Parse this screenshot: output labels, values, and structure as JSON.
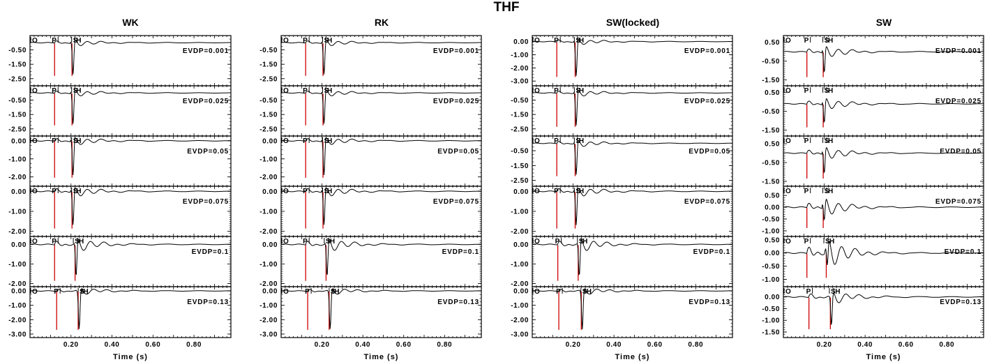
{
  "figure_title": "THF",
  "colors": {
    "trace": "#000000",
    "marker": "#cc0000",
    "axis": "#000000"
  },
  "chart_data": {
    "type": "line",
    "title": "THF",
    "xlabel": "Time (s)",
    "xlim": [
      0.0,
      0.98
    ],
    "xticks": [
      0.2,
      0.4,
      0.6,
      0.8
    ],
    "xtick_labels": [
      "0.20",
      "0.40",
      "0.60",
      "0.80"
    ],
    "panels": [
      {
        "name": "WK",
        "rows": [
          {
            "label": "EVDP=0.001",
            "ylim": [
              -2.85,
              0.35
            ],
            "yticks": [
              -0.5,
              -1.5,
              -2.5
            ],
            "ytick_labels": [
              "-0.50",
              "-1.50",
              "-2.50"
            ],
            "p_time": 0.12,
            "s_time": 0.21,
            "p_pick": 0.12,
            "s_pick": 0.21,
            "sh_pick": 0.222,
            "baseline": 0.0,
            "trough": -2.5,
            "ringing": 0.9
          },
          {
            "label": "EVDP=0.025",
            "ylim": [
              -2.85,
              0.35
            ],
            "yticks": [
              -0.5,
              -1.5,
              -2.5
            ],
            "ytick_labels": [
              "-0.50",
              "-1.50",
              "-2.50"
            ],
            "p_time": 0.12,
            "s_time": 0.21,
            "p_pick": 0.12,
            "s_pick": 0.21,
            "sh_pick": 0.222,
            "baseline": 0.0,
            "trough": -2.45,
            "ringing": 0.9
          },
          {
            "label": "EVDP=0.05",
            "ylim": [
              -2.4,
              0.15
            ],
            "yticks": [
              0.0,
              -1.0,
              -2.0
            ],
            "ytick_labels": [
              "0.00",
              "-1.00",
              "-2.00"
            ],
            "p_time": 0.12,
            "s_time": 0.21,
            "p_pick": 0.12,
            "s_pick": 0.21,
            "sh_pick": 0.222,
            "baseline": 0.0,
            "trough": -2.2,
            "ringing": 0.9
          },
          {
            "label": "EVDP=0.075",
            "ylim": [
              -2.15,
              0.15
            ],
            "yticks": [
              0.0,
              -1.0,
              -2.0
            ],
            "ytick_labels": [
              "0.00",
              "-1.00",
              "-2.00"
            ],
            "p_time": 0.12,
            "s_time": 0.21,
            "p_pick": 0.12,
            "s_pick": 0.21,
            "sh_pick": 0.222,
            "baseline": 0.0,
            "trough": -2.0,
            "ringing": 1.0
          },
          {
            "label": "EVDP=0.1",
            "ylim": [
              -2.05,
              0.3
            ],
            "yticks": [
              0.0,
              -1.0,
              -2.0
            ],
            "ytick_labels": [
              "0.00",
              "-1.00",
              "-2.00"
            ],
            "p_time": 0.12,
            "s_time": 0.225,
            "p_pick": 0.12,
            "s_pick": 0.218,
            "sh_pick": 0.235,
            "baseline": 0.0,
            "trough": -2.0,
            "ringing": 1.3
          },
          {
            "label": "EVDP=0.13",
            "ylim": [
              -3.1,
              0.15
            ],
            "yticks": [
              0.0,
              -1.0,
              -2.0,
              -3.0
            ],
            "ytick_labels": [
              "0.00",
              "-1.00",
              "-2.00",
              "-3.00"
            ],
            "p_time": 0.13,
            "s_time": 0.24,
            "p_pick": 0.13,
            "s_pick": 0.242,
            "sh_pick": 0.257,
            "baseline": 0.0,
            "trough": -2.9,
            "ringing": 0.9
          }
        ]
      },
      {
        "name": "RK",
        "rows": [
          {
            "label": "EVDP=0.001",
            "ylim": [
              -2.85,
              0.35
            ],
            "yticks": [
              -0.5,
              -1.5,
              -2.5
            ],
            "ytick_labels": [
              "-0.50",
              "-1.50",
              "-2.50"
            ],
            "p_time": 0.12,
            "s_time": 0.21,
            "p_pick": 0.12,
            "s_pick": 0.21,
            "sh_pick": 0.222,
            "baseline": 0.0,
            "trough": -2.5,
            "ringing": 0.9
          },
          {
            "label": "EVDP=0.025",
            "ylim": [
              -2.85,
              0.35
            ],
            "yticks": [
              -0.5,
              -1.5,
              -2.5
            ],
            "ytick_labels": [
              "-0.50",
              "-1.50",
              "-2.50"
            ],
            "p_time": 0.12,
            "s_time": 0.21,
            "p_pick": 0.12,
            "s_pick": 0.21,
            "sh_pick": 0.222,
            "baseline": 0.0,
            "trough": -2.45,
            "ringing": 0.9
          },
          {
            "label": "EVDP=0.05",
            "ylim": [
              -2.4,
              0.15
            ],
            "yticks": [
              0.0,
              -1.0,
              -2.0
            ],
            "ytick_labels": [
              "0.00",
              "-1.00",
              "-2.00"
            ],
            "p_time": 0.12,
            "s_time": 0.21,
            "p_pick": 0.12,
            "s_pick": 0.21,
            "sh_pick": 0.222,
            "baseline": 0.0,
            "trough": -2.2,
            "ringing": 0.9
          },
          {
            "label": "EVDP=0.075",
            "ylim": [
              -2.15,
              0.15
            ],
            "yticks": [
              0.0,
              -1.0,
              -2.0
            ],
            "ytick_labels": [
              "0.00",
              "-1.00",
              "-2.00"
            ],
            "p_time": 0.12,
            "s_time": 0.21,
            "p_pick": 0.12,
            "s_pick": 0.21,
            "sh_pick": 0.222,
            "baseline": 0.0,
            "trough": -2.0,
            "ringing": 1.0
          },
          {
            "label": "EVDP=0.1",
            "ylim": [
              -2.05,
              0.3
            ],
            "yticks": [
              0.0,
              -1.0,
              -2.0
            ],
            "ytick_labels": [
              "0.00",
              "-1.00",
              "-2.00"
            ],
            "p_time": 0.12,
            "s_time": 0.225,
            "p_pick": 0.12,
            "s_pick": 0.218,
            "sh_pick": 0.235,
            "baseline": 0.0,
            "trough": -2.0,
            "ringing": 1.3
          },
          {
            "label": "EVDP=0.13",
            "ylim": [
              -3.1,
              0.15
            ],
            "yticks": [
              0.0,
              -1.0,
              -2.0,
              -3.0
            ],
            "ytick_labels": [
              "0.00",
              "-1.00",
              "-2.00",
              "-3.00"
            ],
            "p_time": 0.13,
            "s_time": 0.24,
            "p_pick": 0.13,
            "s_pick": 0.242,
            "sh_pick": 0.257,
            "baseline": 0.0,
            "trough": -2.9,
            "ringing": 0.9
          }
        ]
      },
      {
        "name": "SW(locked)",
        "rows": [
          {
            "label": "EVDP=0.001",
            "ylim": [
              -3.2,
              0.3
            ],
            "yticks": [
              0.0,
              -1.0,
              -2.0,
              -3.0
            ],
            "ytick_labels": [
              "0.00",
              "-1.00",
              "-2.00",
              "-3.00"
            ],
            "p_time": 0.12,
            "s_time": 0.215,
            "p_pick": 0.12,
            "s_pick": 0.213,
            "sh_pick": 0.225,
            "baseline": 0.0,
            "trough": -2.9,
            "ringing": 0.9
          },
          {
            "label": "EVDP=0.025",
            "ylim": [
              -2.85,
              0.35
            ],
            "yticks": [
              -0.5,
              -1.5,
              -2.5
            ],
            "ytick_labels": [
              "-0.50",
              "-1.50",
              "-2.50"
            ],
            "p_time": 0.12,
            "s_time": 0.215,
            "p_pick": 0.12,
            "s_pick": 0.213,
            "sh_pick": 0.225,
            "baseline": 0.0,
            "trough": -2.55,
            "ringing": 0.9
          },
          {
            "label": "EVDP=0.05",
            "ylim": [
              -2.75,
              0.35
            ],
            "yticks": [
              -0.5,
              -1.5,
              -2.5
            ],
            "ytick_labels": [
              "-0.50",
              "-1.50",
              "-2.50"
            ],
            "p_time": 0.12,
            "s_time": 0.215,
            "p_pick": 0.12,
            "s_pick": 0.213,
            "sh_pick": 0.225,
            "baseline": 0.0,
            "trough": -2.4,
            "ringing": 0.9
          },
          {
            "label": "EVDP=0.075",
            "ylim": [
              -2.15,
              0.15
            ],
            "yticks": [
              0.0,
              -1.0,
              -2.0
            ],
            "ytick_labels": [
              "0.00",
              "-1.00",
              "-2.00"
            ],
            "p_time": 0.12,
            "s_time": 0.215,
            "p_pick": 0.12,
            "s_pick": 0.213,
            "sh_pick": 0.225,
            "baseline": 0.0,
            "trough": -2.0,
            "ringing": 1.0
          },
          {
            "label": "EVDP=0.1",
            "ylim": [
              -2.05,
              0.3
            ],
            "yticks": [
              0.0,
              -1.0,
              -2.0
            ],
            "ytick_labels": [
              "0.00",
              "-1.00",
              "-2.00"
            ],
            "p_time": 0.125,
            "s_time": 0.23,
            "p_pick": 0.125,
            "s_pick": 0.228,
            "sh_pick": 0.243,
            "baseline": 0.0,
            "trough": -2.0,
            "ringing": 1.3
          },
          {
            "label": "EVDP=0.13",
            "ylim": [
              -3.1,
              0.15
            ],
            "yticks": [
              0.0,
              -1.0,
              -2.0,
              -3.0
            ],
            "ytick_labels": [
              "0.00",
              "-1.00",
              "-2.00",
              "-3.00"
            ],
            "p_time": 0.13,
            "s_time": 0.245,
            "p_pick": 0.13,
            "s_pick": 0.245,
            "sh_pick": 0.262,
            "baseline": 0.0,
            "trough": -2.9,
            "ringing": 0.9
          }
        ]
      },
      {
        "name": "SW",
        "rows": [
          {
            "label": "EVDP=0.001",
            "ylim": [
              -1.7,
              0.75
            ],
            "yticks": [
              0.5,
              -0.5,
              -1.5
            ],
            "ytick_labels": [
              "0.50",
              "-0.50",
              "-1.50"
            ],
            "p_time": 0.115,
            "s_time": 0.2,
            "p_pick": 0.115,
            "s_pick": 0.2,
            "sh_pick": 0.215,
            "baseline": 0.0,
            "trough": -1.5,
            "ringing": 1.2
          },
          {
            "label": "EVDP=0.025",
            "ylim": [
              -1.7,
              0.75
            ],
            "yticks": [
              0.5,
              -0.5,
              -1.5
            ],
            "ytick_labels": [
              "0.50",
              "-0.50",
              "-1.50"
            ],
            "p_time": 0.115,
            "s_time": 0.2,
            "p_pick": 0.115,
            "s_pick": 0.2,
            "sh_pick": 0.215,
            "baseline": -0.1,
            "trough": -1.5,
            "ringing": 1.2
          },
          {
            "label": "EVDP=0.05",
            "ylim": [
              -1.65,
              0.8
            ],
            "yticks": [
              0.5,
              -0.5,
              -1.5
            ],
            "ytick_labels": [
              "0.50",
              "-0.50",
              "-1.50"
            ],
            "p_time": 0.115,
            "s_time": 0.2,
            "p_pick": 0.115,
            "s_pick": 0.2,
            "sh_pick": 0.215,
            "baseline": 0.0,
            "trough": -1.5,
            "ringing": 1.3
          },
          {
            "label": "EVDP=0.075",
            "ylim": [
              -1.15,
              0.8
            ],
            "yticks": [
              0.5,
              0.0,
              -0.5,
              -1.0
            ],
            "ytick_labels": [
              "0.50",
              "0.00",
              "-0.50",
              "-1.00"
            ],
            "p_time": 0.115,
            "s_time": 0.2,
            "p_pick": 0.115,
            "s_pick": 0.2,
            "sh_pick": 0.215,
            "baseline": 0.0,
            "trough": -1.0,
            "ringing": 1.4
          },
          {
            "label": "EVDP=0.1",
            "ylim": [
              -1.2,
              0.55
            ],
            "yticks": [
              0.5,
              0.0,
              -0.5,
              -1.0
            ],
            "ytick_labels": [
              "0.50",
              "0.00",
              "-0.50",
              "-1.00"
            ],
            "p_time": 0.115,
            "s_time": 0.215,
            "p_pick": 0.115,
            "s_pick": 0.205,
            "sh_pick": 0.222,
            "baseline": 0.0,
            "trough": -1.05,
            "ringing": 2.0
          },
          {
            "label": "EVDP=0.13",
            "ylim": [
              -1.65,
              0.35
            ],
            "yticks": [
              0.0,
              -0.5,
              -1.0,
              -1.5
            ],
            "ytick_labels": [
              "0.00",
              "-0.50",
              "-1.00",
              "-1.50"
            ],
            "p_time": 0.125,
            "s_time": 0.235,
            "p_pick": 0.125,
            "s_pick": 0.232,
            "sh_pick": 0.25,
            "baseline": 0.0,
            "trough": -1.5,
            "ringing": 1.0
          }
        ]
      }
    ],
    "phase_labels": {
      "p": "P",
      "s": "S",
      "h": "H"
    }
  }
}
